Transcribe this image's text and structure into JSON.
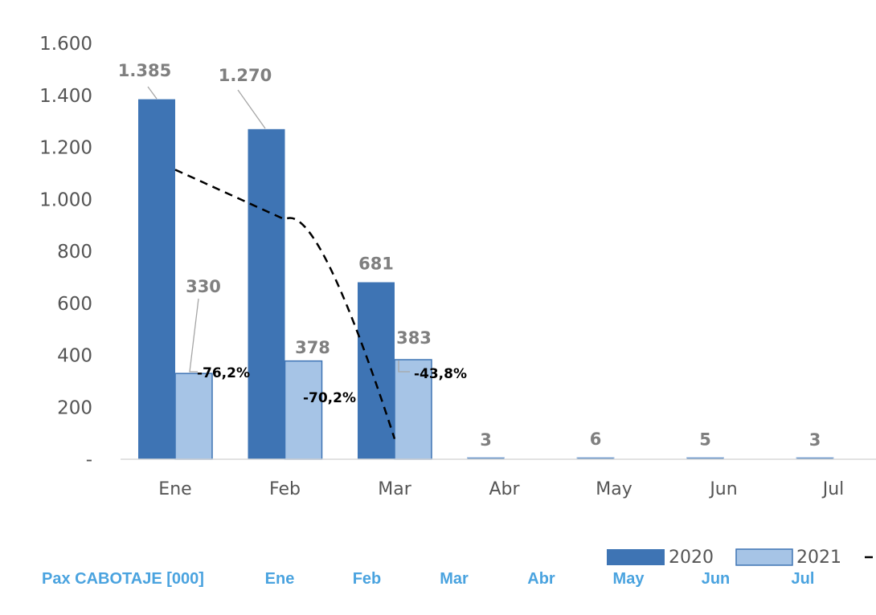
{
  "chart_data": {
    "type": "bar",
    "categories": [
      "Ene",
      "Feb",
      "Mar",
      "Abr",
      "May",
      "Jun",
      "Jul"
    ],
    "ylim": [
      0,
      1600
    ],
    "yticks": [
      {
        "value": 0,
        "label": "-"
      },
      {
        "value": 200,
        "label": "200"
      },
      {
        "value": 400,
        "label": "400"
      },
      {
        "value": 600,
        "label": "600"
      },
      {
        "value": 800,
        "label": "800"
      },
      {
        "value": 1000,
        "label": "1.000"
      },
      {
        "value": 1200,
        "label": "1.200"
      },
      {
        "value": 1400,
        "label": "1.400"
      },
      {
        "value": 1600,
        "label": "1.600"
      }
    ],
    "series": [
      {
        "name": "2020",
        "values": [
          1385,
          1270,
          681,
          3,
          6,
          5,
          3
        ],
        "labels": [
          "1.385",
          "1.270",
          "681",
          "3",
          "6",
          "5",
          "3"
        ],
        "color": "#3e74b4"
      },
      {
        "name": "2021",
        "values": [
          330,
          378,
          383,
          null,
          null,
          null,
          null
        ],
        "labels": [
          "330",
          "378",
          "383",
          "",
          "",
          "",
          ""
        ],
        "color": "#a6c4e6"
      }
    ],
    "change_line": {
      "values": [
        -76.2,
        -70.2,
        -43.8
      ],
      "labels": [
        "-76,2%",
        "-70,2%",
        "-43,8%"
      ],
      "style": "dashed",
      "color": "#000000"
    },
    "grid": false,
    "legend": "bottom-right"
  },
  "table": {
    "row_label": "Pax CABOTAJE [000]",
    "columns": [
      "Ene",
      "Feb",
      "Mar",
      "Abr",
      "May",
      "Jun",
      "Jul"
    ]
  }
}
